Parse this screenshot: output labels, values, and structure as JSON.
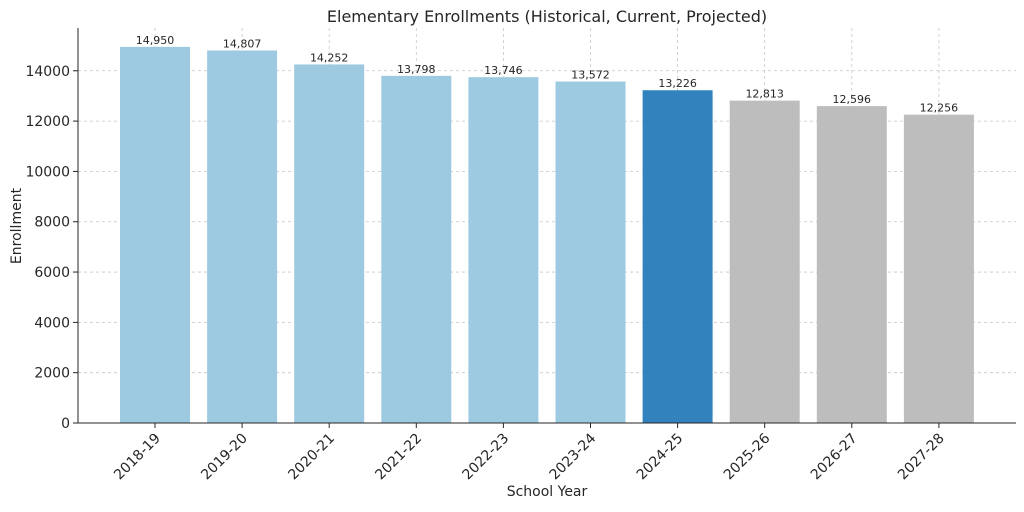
{
  "chart_data": {
    "type": "bar",
    "title": "Elementary Enrollments (Historical, Current, Projected)",
    "xlabel": "School Year",
    "ylabel": "Enrollment",
    "categories": [
      "2018-19",
      "2019-20",
      "2020-21",
      "2021-22",
      "2022-23",
      "2023-24",
      "2024-25",
      "2025-26",
      "2026-27",
      "2027-28"
    ],
    "values": [
      14950,
      14807,
      14252,
      13798,
      13746,
      13572,
      13226,
      12813,
      12596,
      12256
    ],
    "data_labels": [
      "14,950",
      "14,807",
      "14,252",
      "13,798",
      "13,746",
      "13,572",
      "13,226",
      "12,813",
      "12,596",
      "12,256"
    ],
    "bar_colors": [
      "#9ecae1",
      "#9ecae1",
      "#9ecae1",
      "#9ecae1",
      "#9ecae1",
      "#9ecae1",
      "#3182bd",
      "#bdbdbd",
      "#bdbdbd",
      "#bdbdbd"
    ],
    "ylim": [
      0,
      15700
    ],
    "yticks": [
      0,
      2000,
      4000,
      6000,
      8000,
      10000,
      12000,
      14000
    ],
    "grid": true
  }
}
